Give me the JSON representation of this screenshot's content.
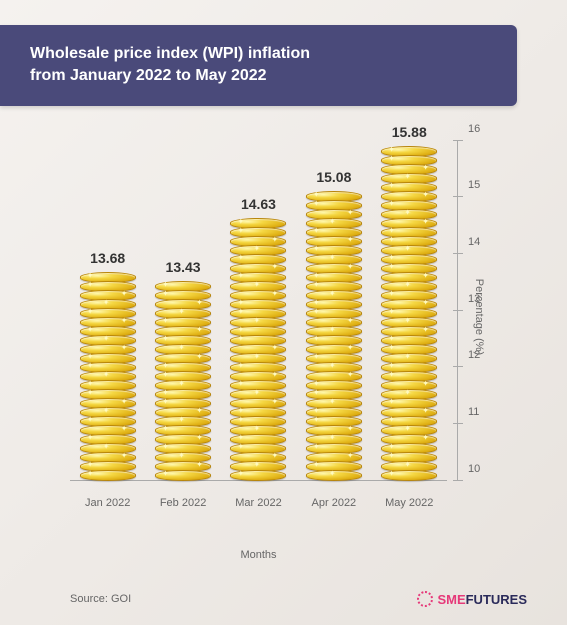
{
  "header": {
    "title_line1": "Wholesale price index (WPI) inflation",
    "title_line2": "from January 2022 to May 2022"
  },
  "chart": {
    "type": "bar",
    "x_label": "Months",
    "y_label": "Percentage (%)",
    "y_min": 10,
    "y_max": 16,
    "y_tick_step": 1,
    "categories": [
      "Jan 2022",
      "Feb 2022",
      "Mar 2022",
      "Apr 2022",
      "May 2022"
    ],
    "values": [
      13.68,
      13.43,
      14.63,
      15.08,
      15.88
    ],
    "value_labels": [
      "13.68",
      "13.43",
      "14.63",
      "15.08",
      "15.88"
    ],
    "bar_color_light": "#f5d742",
    "bar_color_dark": "#c9940a",
    "label_color": "#333333",
    "label_fontsize": 14,
    "tick_color": "#666666",
    "tick_fontsize": 11,
    "axis_line_color": "#aaaaaa",
    "background": "linear-gradient(135deg,#f5f2ef,#e8e3de)"
  },
  "footer": {
    "source": "Source: GOI",
    "brand_part1": "SME",
    "brand_part2": "FUTURES",
    "brand_color1": "#e63979",
    "brand_color2": "#2a2a5a"
  },
  "colors": {
    "header_bg": "#4a4a7a",
    "header_text": "#ffffff"
  }
}
